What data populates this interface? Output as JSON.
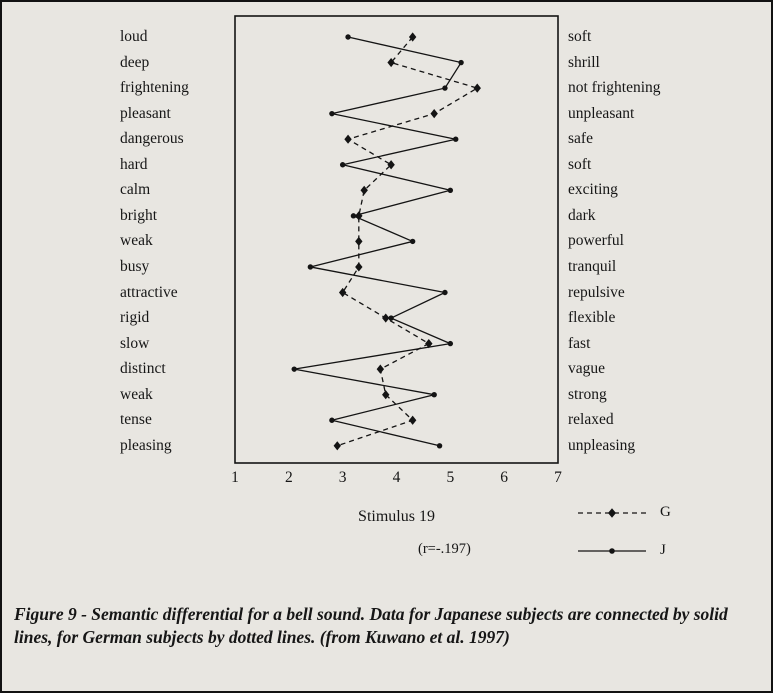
{
  "figure": {
    "stimulus_label": "Stimulus 19",
    "correlation_label": "(r=-.197)",
    "caption": "Figure 9 - Semantic differential for a bell sound. Data for Japanese subjects are connected by solid lines, for German subjects by dotted lines. (from Kuwano et al. 1997)"
  },
  "legend": [
    {
      "label": "G",
      "style": "dotted-diamond"
    },
    {
      "label": "J",
      "style": "solid-dot"
    }
  ],
  "chart_data": {
    "type": "line",
    "title": "Semantic differential profile for a bell sound (Stimulus 19)",
    "orientation": "horizontal-scale-vertical-items",
    "xlim": [
      1,
      7
    ],
    "x_ticks": [
      1,
      2,
      3,
      4,
      5,
      6,
      7
    ],
    "grid": false,
    "legend_position": "bottom-right",
    "rows": [
      {
        "left": "loud",
        "right": "soft"
      },
      {
        "left": "deep",
        "right": "shrill"
      },
      {
        "left": "frightening",
        "right": "not frightening"
      },
      {
        "left": "pleasant",
        "right": "unpleasant"
      },
      {
        "left": "dangerous",
        "right": "safe"
      },
      {
        "left": "hard",
        "right": "soft"
      },
      {
        "left": "calm",
        "right": "exciting"
      },
      {
        "left": "bright",
        "right": "dark"
      },
      {
        "left": "weak",
        "right": "powerful"
      },
      {
        "left": "busy",
        "right": "tranquil"
      },
      {
        "left": "attractive",
        "right": "repulsive"
      },
      {
        "left": "rigid",
        "right": "flexible"
      },
      {
        "left": "slow",
        "right": "fast"
      },
      {
        "left": "distinct",
        "right": "vague"
      },
      {
        "left": "weak",
        "right": "strong"
      },
      {
        "left": "tense",
        "right": "relaxed"
      },
      {
        "left": "pleasing",
        "right": "unpleasing"
      }
    ],
    "series": [
      {
        "name": "G",
        "line": "dashed",
        "marker": "diamond",
        "values": [
          4.3,
          3.9,
          5.5,
          4.7,
          3.1,
          3.9,
          3.4,
          3.3,
          3.3,
          3.3,
          3.0,
          3.8,
          4.6,
          3.7,
          3.8,
          4.3,
          2.9
        ]
      },
      {
        "name": "J",
        "line": "solid",
        "marker": "dot",
        "values": [
          3.1,
          5.2,
          4.9,
          2.8,
          5.1,
          3.0,
          5.0,
          3.2,
          4.3,
          2.4,
          4.9,
          3.9,
          5.0,
          2.1,
          4.7,
          2.8,
          4.8
        ]
      }
    ]
  }
}
